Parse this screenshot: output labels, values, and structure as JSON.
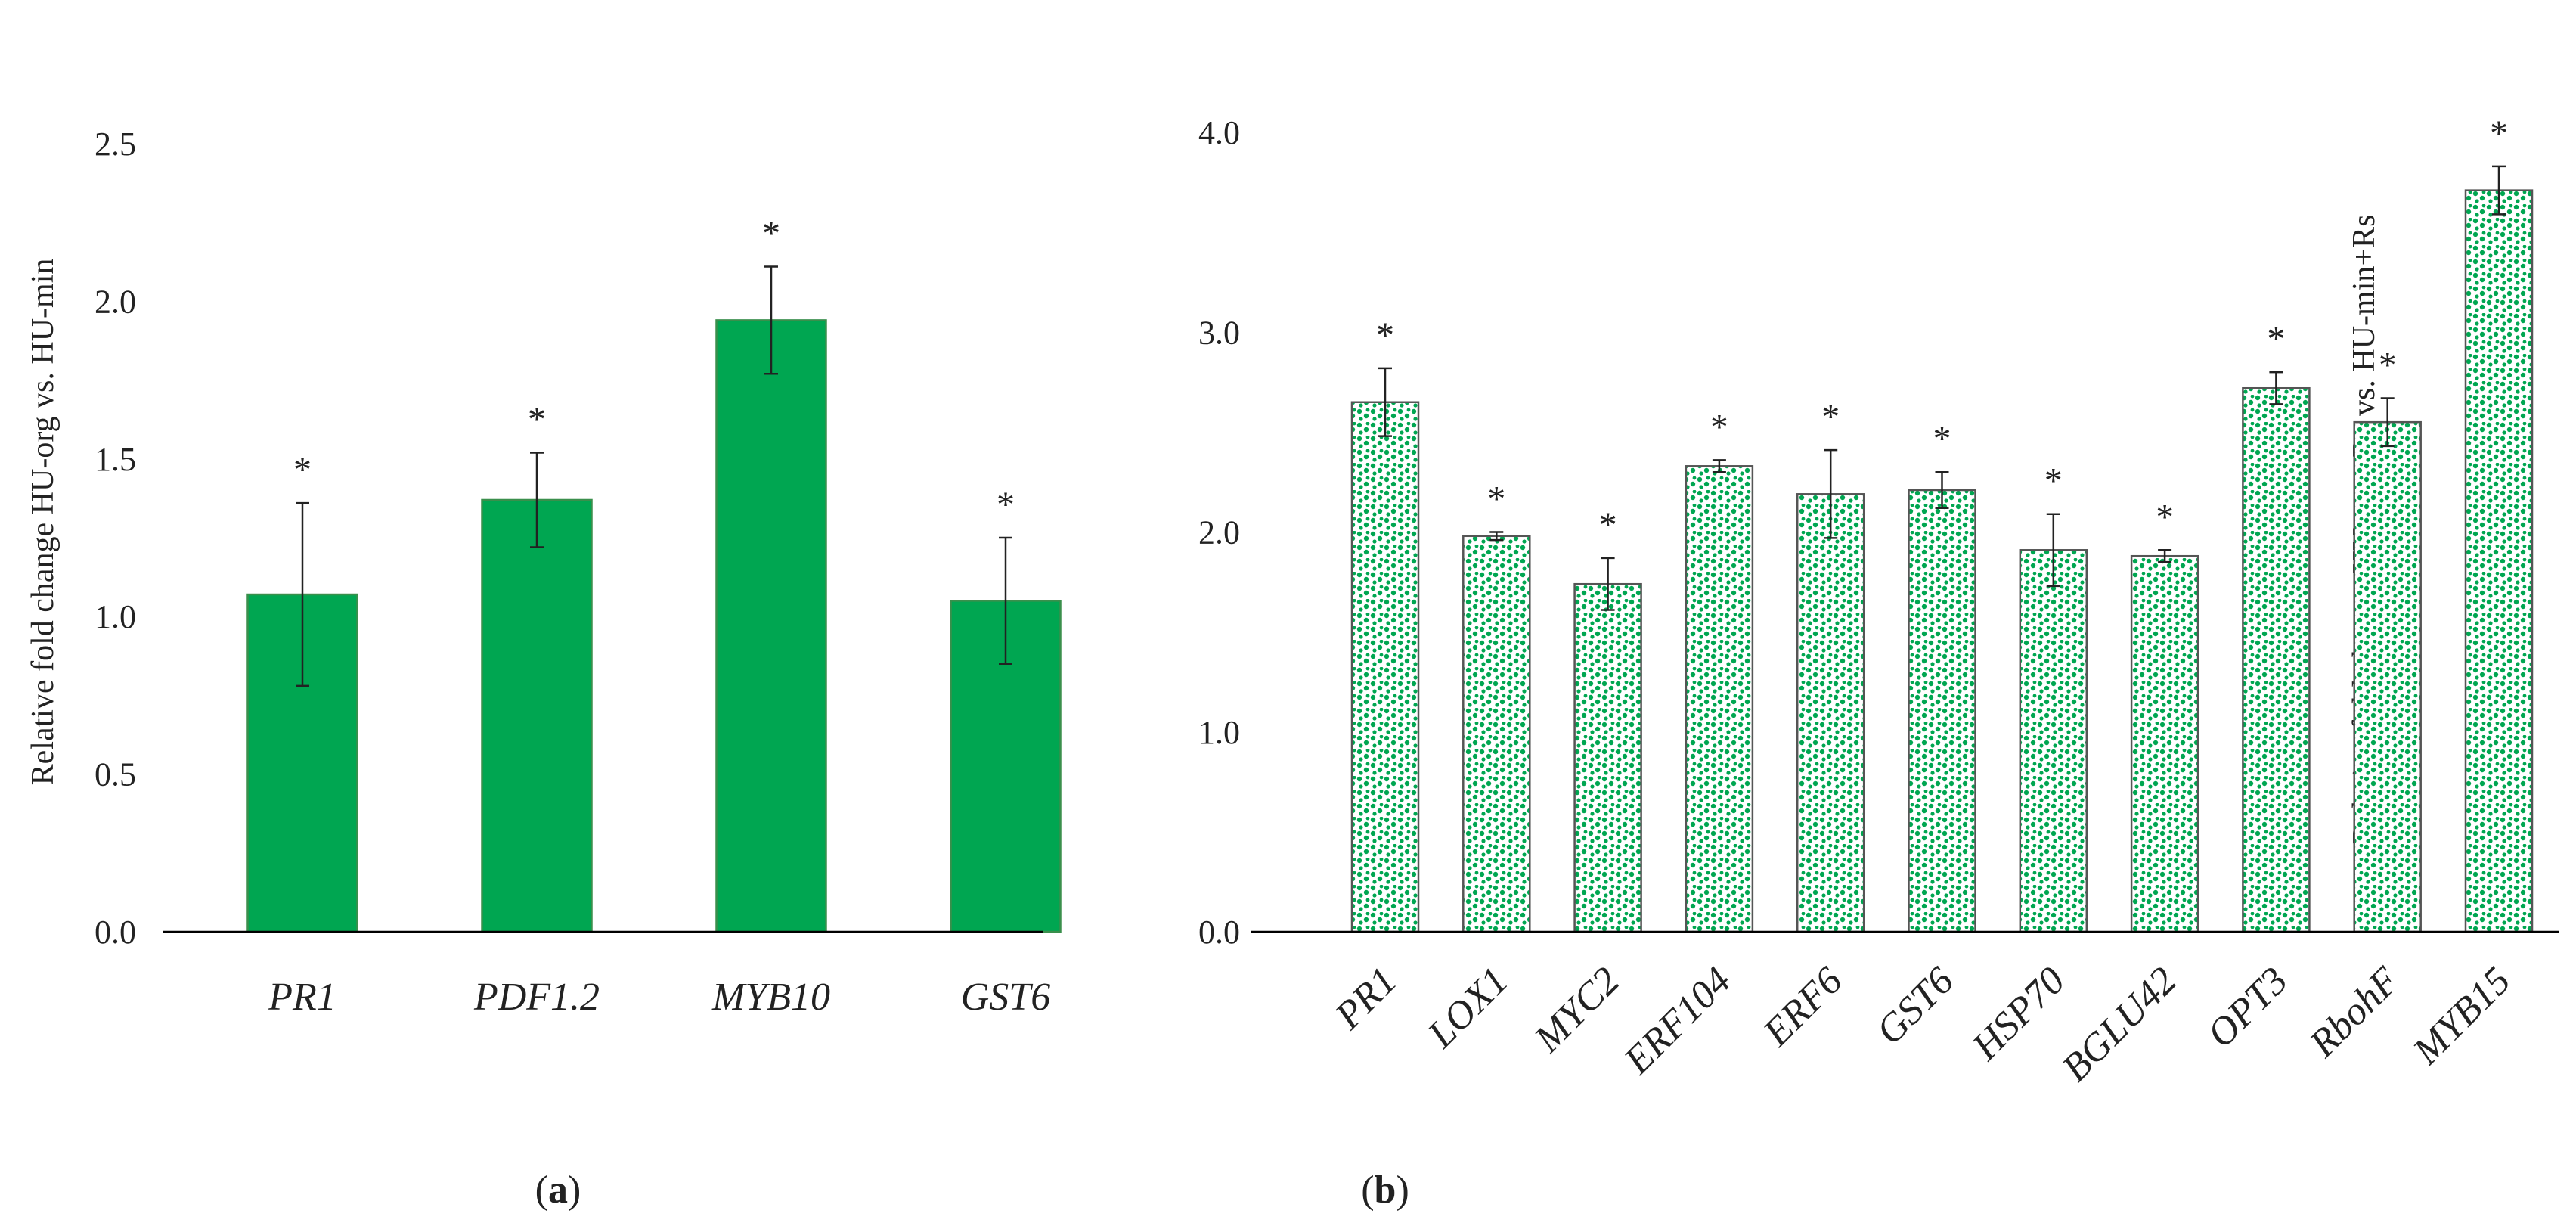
{
  "chart_data": [
    {
      "panel": "a",
      "type": "bar",
      "ylabel": "Relative fold change HU-org vs. HU-min",
      "ylim": [
        0,
        2.5
      ],
      "yticks": [
        "0.0",
        "0.5",
        "1.0",
        "1.5",
        "2.0",
        "2.5"
      ],
      "categories": [
        "PR1",
        "PDF1.2",
        "MYB10",
        "GST6"
      ],
      "values": [
        1.07,
        1.37,
        1.94,
        1.05
      ],
      "errors": [
        0.29,
        0.15,
        0.17,
        0.2
      ],
      "significance": [
        "*",
        "*",
        "*",
        "*"
      ],
      "fill": "#00a651",
      "pattern": "solid",
      "caption_open": "(",
      "caption_letter": "a",
      "caption_close": ")"
    },
    {
      "panel": "b",
      "type": "bar",
      "ylabel": "Relative fold change HU-org+Rs vs. HU-min+Rs",
      "ylim": [
        0,
        4.0
      ],
      "yticks": [
        "0.0",
        "1.0",
        "2.0",
        "3.0",
        "4.0"
      ],
      "categories": [
        "PR1",
        "LOX1",
        "MYC2",
        "ERF104",
        "ERF6",
        "GST6",
        "HSP70",
        "BGLU42",
        "OPT3",
        "RbohF",
        "MYB15"
      ],
      "values": [
        2.65,
        1.98,
        1.74,
        2.33,
        2.19,
        2.21,
        1.91,
        1.88,
        2.72,
        2.55,
        3.71
      ],
      "errors": [
        0.17,
        0.02,
        0.13,
        0.03,
        0.22,
        0.09,
        0.18,
        0.03,
        0.08,
        0.12,
        0.12
      ],
      "significance": [
        "*",
        "*",
        "*",
        "*",
        "*",
        "*",
        "*",
        "*",
        "*",
        "*",
        "*"
      ],
      "fill": "#00a651",
      "pattern": "dotted",
      "caption_open": "(",
      "caption_letter": "b",
      "caption_close": ")"
    }
  ]
}
